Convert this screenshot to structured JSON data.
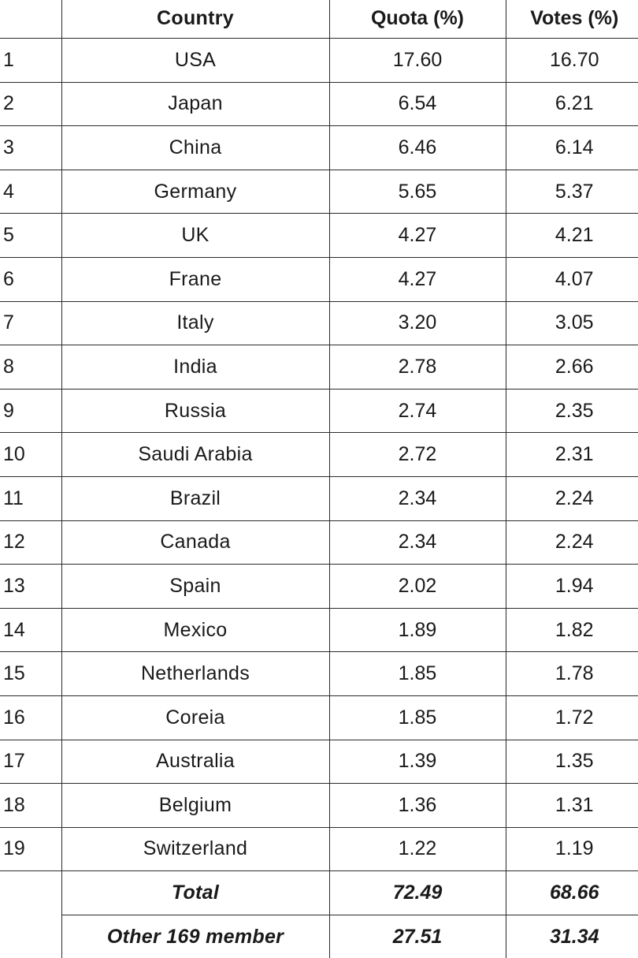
{
  "table": {
    "headers": {
      "rank": "",
      "country": "Country",
      "quota": "Quota (%)",
      "votes": "Votes (%)"
    },
    "rows": [
      {
        "rank": "1",
        "country": "USA",
        "quota": "17.60",
        "votes": "16.70"
      },
      {
        "rank": "2",
        "country": "Japan",
        "quota": "6.54",
        "votes": "6.21"
      },
      {
        "rank": "3",
        "country": "China",
        "quota": "6.46",
        "votes": "6.14"
      },
      {
        "rank": "4",
        "country": "Germany",
        "quota": "5.65",
        "votes": "5.37"
      },
      {
        "rank": "5",
        "country": "UK",
        "quota": "4.27",
        "votes": "4.21"
      },
      {
        "rank": "6",
        "country": "Frane",
        "quota": "4.27",
        "votes": "4.07"
      },
      {
        "rank": "7",
        "country": "Italy",
        "quota": "3.20",
        "votes": "3.05"
      },
      {
        "rank": "8",
        "country": "India",
        "quota": "2.78",
        "votes": "2.66"
      },
      {
        "rank": "9",
        "country": "Russia",
        "quota": "2.74",
        "votes": "2.35"
      },
      {
        "rank": "10",
        "country": "Saudi Arabia",
        "quota": "2.72",
        "votes": "2.31"
      },
      {
        "rank": "11",
        "country": "Brazil",
        "quota": "2.34",
        "votes": "2.24"
      },
      {
        "rank": "12",
        "country": "Canada",
        "quota": "2.34",
        "votes": "2.24"
      },
      {
        "rank": "13",
        "country": "Spain",
        "quota": "2.02",
        "votes": "1.94"
      },
      {
        "rank": "14",
        "country": "Mexico",
        "quota": "1.89",
        "votes": "1.82"
      },
      {
        "rank": "15",
        "country": "Netherlands",
        "quota": "1.85",
        "votes": "1.78"
      },
      {
        "rank": "16",
        "country": "Coreia",
        "quota": "1.85",
        "votes": "1.72"
      },
      {
        "rank": "17",
        "country": "Australia",
        "quota": "1.39",
        "votes": "1.35"
      },
      {
        "rank": "18",
        "country": "Belgium",
        "quota": "1.36",
        "votes": "1.31"
      },
      {
        "rank": "19",
        "country": "Switzerland",
        "quota": "1.22",
        "votes": "1.19"
      }
    ],
    "total": {
      "label": "Total",
      "quota": "72.49",
      "votes": "68.66"
    },
    "other": {
      "label": "Other 169 member",
      "quota": "27.51",
      "votes": "31.34"
    }
  }
}
